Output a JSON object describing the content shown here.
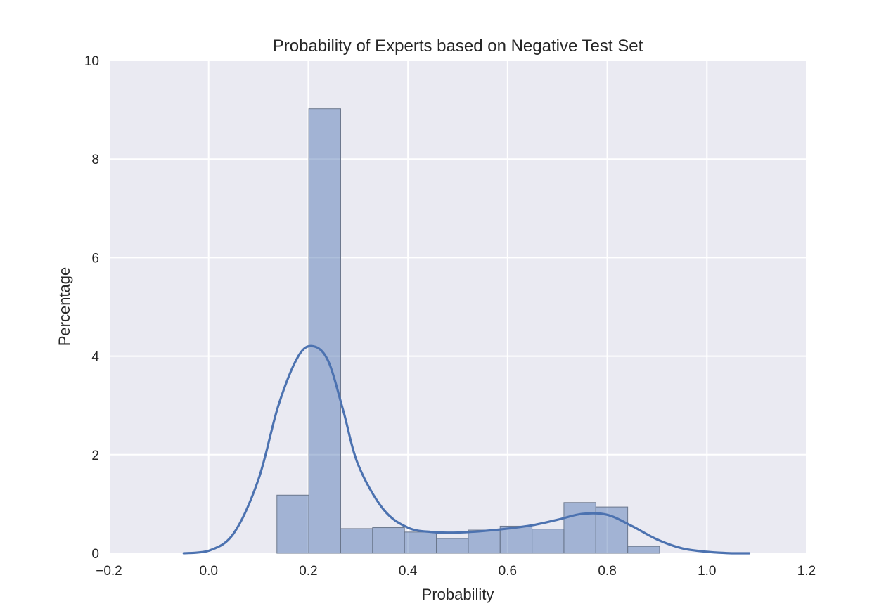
{
  "chart_data": {
    "type": "bar",
    "title": "Probability of Experts based on Negative Test Set",
    "xlabel": "Probability",
    "ylabel": "Percentage",
    "xlim": [
      -0.2,
      1.2
    ],
    "ylim": [
      0,
      10
    ],
    "x_ticks": [
      "−0.2",
      "0.0",
      "0.2",
      "0.4",
      "0.6",
      "0.8",
      "1.0",
      "1.2"
    ],
    "x_tick_values": [
      -0.2,
      0.0,
      0.2,
      0.4,
      0.6,
      0.8,
      1.0,
      1.2
    ],
    "y_ticks": [
      "0",
      "2",
      "4",
      "6",
      "8",
      "10"
    ],
    "y_tick_values": [
      0,
      2,
      4,
      6,
      8,
      10
    ],
    "grid": true,
    "histogram": {
      "bin_edges": [
        0.137,
        0.201,
        0.265,
        0.329,
        0.393,
        0.457,
        0.521,
        0.585,
        0.649,
        0.713,
        0.777,
        0.841,
        0.905
      ],
      "values": [
        1.18,
        9.02,
        0.5,
        0.52,
        0.43,
        0.3,
        0.47,
        0.55,
        0.49,
        1.03,
        0.94,
        0.14
      ],
      "color": "#4c72b0",
      "opacity": 0.45
    },
    "kde": {
      "x": [
        -0.05,
        0.0,
        0.05,
        0.1,
        0.14,
        0.18,
        0.21,
        0.24,
        0.27,
        0.3,
        0.35,
        0.4,
        0.45,
        0.5,
        0.55,
        0.6,
        0.65,
        0.7,
        0.75,
        0.8,
        0.85,
        0.9,
        0.95,
        1.0,
        1.05,
        1.085
      ],
      "y": [
        0.0,
        0.05,
        0.4,
        1.5,
        3.0,
        4.0,
        4.2,
        3.9,
        2.9,
        1.8,
        0.9,
        0.52,
        0.43,
        0.42,
        0.45,
        0.5,
        0.57,
        0.68,
        0.8,
        0.78,
        0.55,
        0.28,
        0.1,
        0.03,
        0.0,
        0.0
      ],
      "color": "#4c72b0"
    },
    "colors": {
      "plot_background": "#eaeaf2",
      "grid": "#ffffff",
      "bar_edge": "#6b778c"
    }
  }
}
